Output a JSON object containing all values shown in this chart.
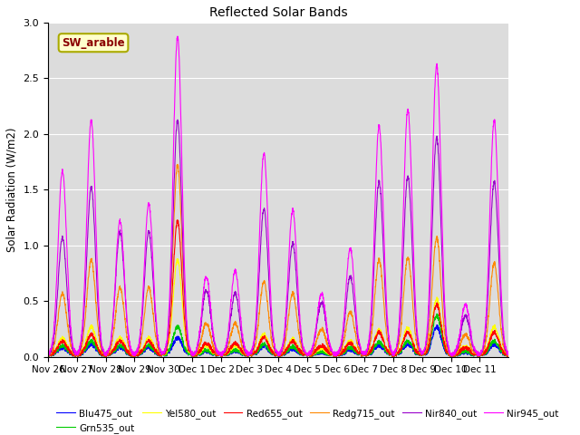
{
  "title": "Reflected Solar Bands",
  "ylabel": "Solar Radiation (W/m2)",
  "xlabel": "",
  "ylim": [
    0,
    3.0
  ],
  "yticks": [
    0.0,
    0.5,
    1.0,
    1.5,
    2.0,
    2.5,
    3.0
  ],
  "annotation_text": "SW_arable",
  "annotation_color": "#8B0000",
  "annotation_bg": "#FFFFCC",
  "annotation_border": "#AAAA00",
  "bg_color": "#DCDCDC",
  "line_colors": {
    "Blu475_out": "#0000FF",
    "Grn535_out": "#00CC00",
    "Yel580_out": "#FFFF00",
    "Red655_out": "#FF0000",
    "Redg715_out": "#FF8800",
    "Nir840_out": "#9900CC",
    "Nir945_out": "#FF00FF"
  },
  "x_tick_labels": [
    "Nov 26",
    "Nov 27",
    "Nov 28",
    "Nov 29",
    "Nov 30",
    "Dec 1",
    "Dec 2",
    "Dec 3",
    "Dec 4",
    "Dec 5",
    "Dec 6",
    "Dec 7",
    "Dec 8",
    "Dec 9",
    "Dec 10",
    "Dec 11"
  ],
  "n_days": 16,
  "samples_per_day": 144,
  "daily_peaks": {
    "Nir945_out": [
      1.65,
      2.1,
      1.2,
      1.35,
      2.85,
      0.7,
      0.75,
      1.8,
      1.3,
      0.55,
      0.95,
      2.05,
      2.2,
      2.6,
      0.45,
      2.1
    ],
    "Nir840_out": [
      1.05,
      1.5,
      1.1,
      1.1,
      2.1,
      0.58,
      0.55,
      1.3,
      1.0,
      0.47,
      0.7,
      1.55,
      1.6,
      1.95,
      0.35,
      1.55
    ],
    "Redg715_out": [
      0.55,
      0.85,
      0.6,
      0.6,
      1.7,
      0.28,
      0.28,
      0.65,
      0.55,
      0.23,
      0.38,
      0.85,
      0.87,
      1.05,
      0.18,
      0.82
    ],
    "Red655_out": [
      0.12,
      0.18,
      0.12,
      0.12,
      1.2,
      0.1,
      0.1,
      0.15,
      0.12,
      0.08,
      0.1,
      0.2,
      0.2,
      0.45,
      0.06,
      0.2
    ],
    "Yel580_out": [
      0.15,
      0.25,
      0.15,
      0.15,
      0.85,
      0.08,
      0.08,
      0.18,
      0.14,
      0.06,
      0.12,
      0.22,
      0.24,
      0.5,
      0.07,
      0.25
    ],
    "Grn535_out": [
      0.08,
      0.12,
      0.08,
      0.08,
      0.25,
      0.04,
      0.04,
      0.09,
      0.07,
      0.03,
      0.06,
      0.11,
      0.12,
      0.35,
      0.03,
      0.12
    ],
    "Blu475_out": [
      0.06,
      0.09,
      0.06,
      0.06,
      0.15,
      0.03,
      0.03,
      0.07,
      0.05,
      0.02,
      0.04,
      0.08,
      0.09,
      0.25,
      0.02,
      0.09
    ]
  },
  "figsize": [
    6.4,
    4.8
  ],
  "dpi": 100
}
